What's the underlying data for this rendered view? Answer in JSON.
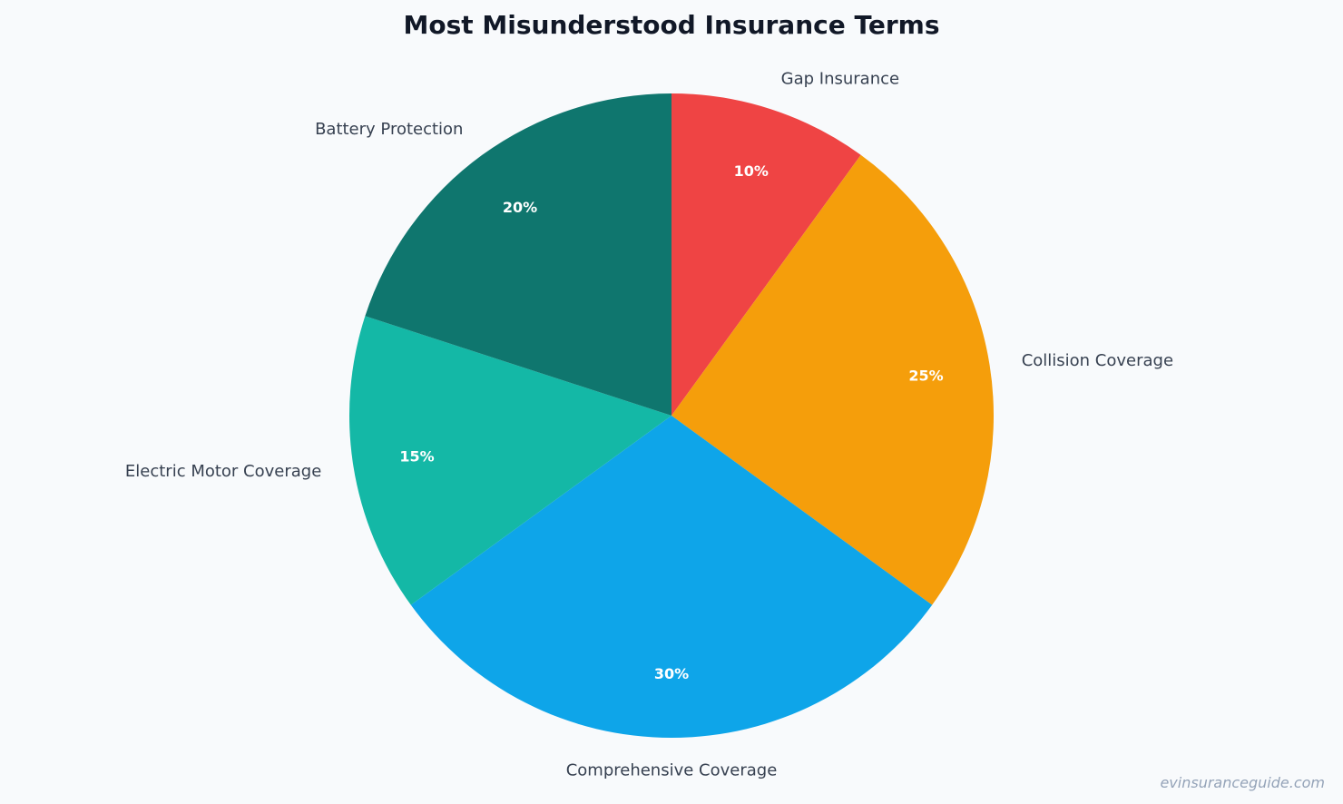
{
  "chart_data": {
    "type": "pie",
    "title": "Most Misunderstood Insurance Terms",
    "start_angle_deg": 90,
    "direction": "clockwise",
    "slices": [
      {
        "label": "Gap Insurance",
        "value": 10,
        "percent_label": "10%",
        "color": "#ef4444"
      },
      {
        "label": "Collision Coverage",
        "value": 25,
        "percent_label": "25%",
        "color": "#f59e0b"
      },
      {
        "label": "Comprehensive Coverage",
        "value": 30,
        "percent_label": "30%",
        "color": "#0ea5e9"
      },
      {
        "label": "Electric Motor Coverage",
        "value": 15,
        "percent_label": "15%",
        "color": "#14b8a6"
      },
      {
        "label": "Battery Protection",
        "value": 20,
        "percent_label": "20%",
        "color": "#0f766e"
      }
    ]
  },
  "watermark": "evinsuranceguide.com"
}
